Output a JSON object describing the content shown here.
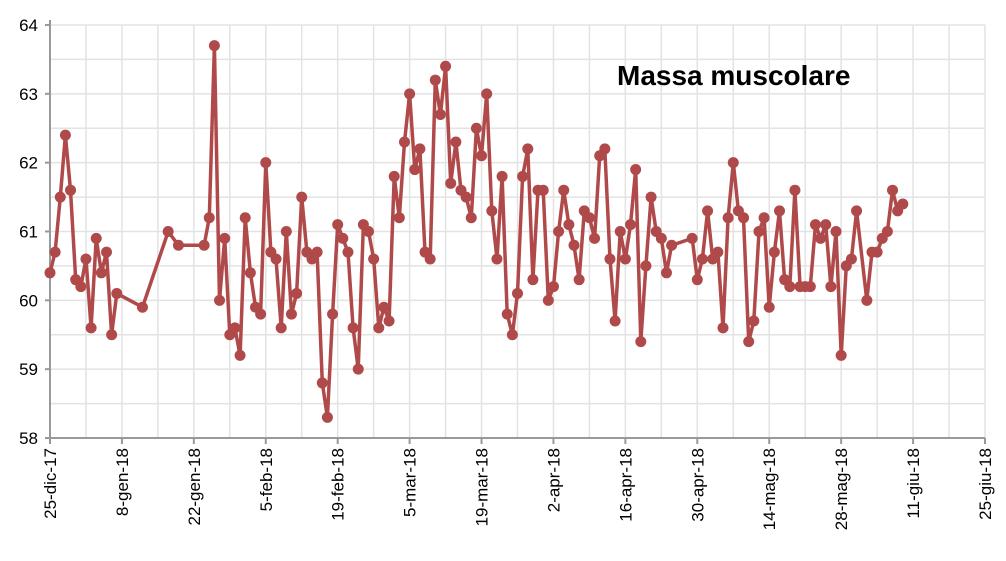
{
  "chart_data": {
    "type": "line",
    "title": "Massa muscolare",
    "xlabel": "",
    "ylabel": "",
    "x_origin_date": "2017-12-25",
    "x_unit": "days since 25-dic-17",
    "xlim": [
      0,
      182
    ],
    "ylim": [
      58,
      64
    ],
    "grid": true,
    "y_ticks": [
      "58",
      "59",
      "60",
      "61",
      "62",
      "63",
      "64"
    ],
    "x_tick_labels": [
      "25-dic-17",
      "8-gen-18",
      "22-gen-18",
      "5-feb-18",
      "19-feb-18",
      "5-mar-18",
      "19-mar-18",
      "2-apr-18",
      "16-apr-18",
      "30-apr-18",
      "14-mag-18",
      "28-mag-18",
      "11-giu-18",
      "25-giu-18"
    ],
    "series": [
      {
        "name": "Massa muscolare",
        "color": "#b04a4a",
        "points": [
          [
            0,
            60.4
          ],
          [
            1,
            60.7
          ],
          [
            2,
            61.5
          ],
          [
            3,
            62.4
          ],
          [
            4,
            61.6
          ],
          [
            5,
            60.3
          ],
          [
            6,
            60.2
          ],
          [
            7,
            60.6
          ],
          [
            8,
            59.6
          ],
          [
            9,
            60.9
          ],
          [
            10,
            60.4
          ],
          [
            11,
            60.7
          ],
          [
            12,
            59.5
          ],
          [
            13,
            60.1
          ],
          [
            18,
            59.9
          ],
          [
            23,
            61.0
          ],
          [
            25,
            60.8
          ],
          [
            30,
            60.8
          ],
          [
            31,
            61.2
          ],
          [
            32,
            63.7
          ],
          [
            33,
            60.0
          ],
          [
            34,
            60.9
          ],
          [
            35,
            59.5
          ],
          [
            36,
            59.6
          ],
          [
            37,
            59.2
          ],
          [
            38,
            61.2
          ],
          [
            39,
            60.4
          ],
          [
            40,
            59.9
          ],
          [
            41,
            59.8
          ],
          [
            42,
            62.0
          ],
          [
            43,
            60.7
          ],
          [
            44,
            60.6
          ],
          [
            45,
            59.6
          ],
          [
            46,
            61.0
          ],
          [
            47,
            59.8
          ],
          [
            48,
            60.1
          ],
          [
            49,
            61.5
          ],
          [
            50,
            60.7
          ],
          [
            51,
            60.6
          ],
          [
            52,
            60.7
          ],
          [
            53,
            58.8
          ],
          [
            54,
            58.3
          ],
          [
            55,
            59.8
          ],
          [
            56,
            61.1
          ],
          [
            57,
            60.9
          ],
          [
            58,
            60.7
          ],
          [
            59,
            59.6
          ],
          [
            60,
            59.0
          ],
          [
            61,
            61.1
          ],
          [
            62,
            61.0
          ],
          [
            63,
            60.6
          ],
          [
            64,
            59.6
          ],
          [
            65,
            59.9
          ],
          [
            66,
            59.7
          ],
          [
            67,
            61.8
          ],
          [
            68,
            61.2
          ],
          [
            69,
            62.3
          ],
          [
            70,
            63.0
          ],
          [
            71,
            61.9
          ],
          [
            72,
            62.2
          ],
          [
            73,
            60.7
          ],
          [
            74,
            60.6
          ],
          [
            75,
            63.2
          ],
          [
            76,
            62.7
          ],
          [
            77,
            63.4
          ],
          [
            78,
            61.7
          ],
          [
            79,
            62.3
          ],
          [
            80,
            61.6
          ],
          [
            81,
            61.5
          ],
          [
            82,
            61.2
          ],
          [
            83,
            62.5
          ],
          [
            84,
            62.1
          ],
          [
            85,
            63.0
          ],
          [
            86,
            61.3
          ],
          [
            87,
            60.6
          ],
          [
            88,
            61.8
          ],
          [
            89,
            59.8
          ],
          [
            90,
            59.5
          ],
          [
            91,
            60.1
          ],
          [
            92,
            61.8
          ],
          [
            93,
            62.2
          ],
          [
            94,
            60.3
          ],
          [
            95,
            61.6
          ],
          [
            96,
            61.6
          ],
          [
            97,
            60.0
          ],
          [
            98,
            60.2
          ],
          [
            99,
            61.0
          ],
          [
            100,
            61.6
          ],
          [
            101,
            61.1
          ],
          [
            102,
            60.8
          ],
          [
            103,
            60.3
          ],
          [
            104,
            61.3
          ],
          [
            105,
            61.2
          ],
          [
            106,
            60.9
          ],
          [
            107,
            62.1
          ],
          [
            108,
            62.2
          ],
          [
            109,
            60.6
          ],
          [
            110,
            59.7
          ],
          [
            111,
            61.0
          ],
          [
            112,
            60.6
          ],
          [
            113,
            61.1
          ],
          [
            114,
            61.9
          ],
          [
            115,
            59.4
          ],
          [
            116,
            60.5
          ],
          [
            117,
            61.5
          ],
          [
            118,
            61.0
          ],
          [
            119,
            60.9
          ],
          [
            120,
            60.4
          ],
          [
            121,
            60.8
          ],
          [
            125,
            60.9
          ],
          [
            126,
            60.3
          ],
          [
            127,
            60.6
          ],
          [
            128,
            61.3
          ],
          [
            129,
            60.6
          ],
          [
            130,
            60.7
          ],
          [
            131,
            59.6
          ],
          [
            132,
            61.2
          ],
          [
            133,
            62.0
          ],
          [
            134,
            61.3
          ],
          [
            135,
            61.2
          ],
          [
            136,
            59.4
          ],
          [
            137,
            59.7
          ],
          [
            138,
            61.0
          ],
          [
            139,
            61.2
          ],
          [
            140,
            59.9
          ],
          [
            141,
            60.7
          ],
          [
            142,
            61.3
          ],
          [
            143,
            60.3
          ],
          [
            144,
            60.2
          ],
          [
            145,
            61.6
          ],
          [
            146,
            60.2
          ],
          [
            147,
            60.2
          ],
          [
            148,
            60.2
          ],
          [
            149,
            61.1
          ],
          [
            150,
            60.9
          ],
          [
            151,
            61.1
          ],
          [
            152,
            60.2
          ],
          [
            153,
            61.0
          ],
          [
            154,
            59.2
          ],
          [
            155,
            60.5
          ],
          [
            156,
            60.6
          ],
          [
            157,
            61.3
          ],
          [
            159,
            60.0
          ],
          [
            160,
            60.7
          ],
          [
            161,
            60.7
          ],
          [
            162,
            60.9
          ],
          [
            163,
            61.0
          ],
          [
            164,
            61.6
          ],
          [
            165,
            61.3
          ],
          [
            166,
            61.4
          ]
        ]
      }
    ],
    "legend": "none"
  }
}
